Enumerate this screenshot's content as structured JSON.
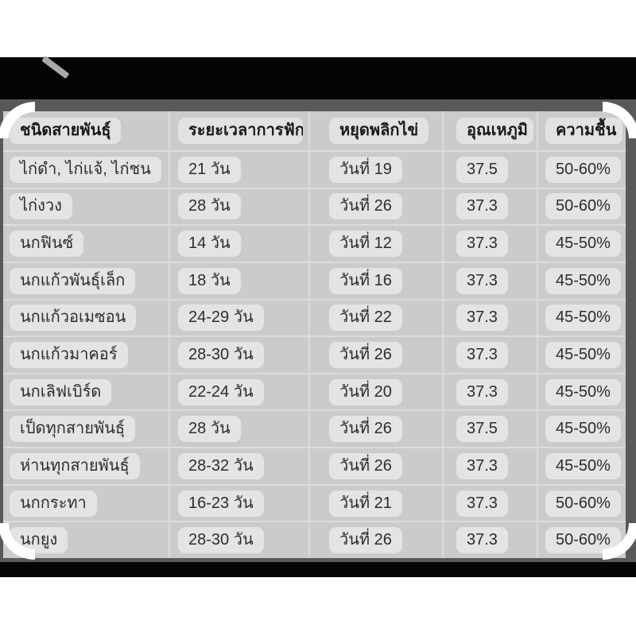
{
  "page": {
    "colors": {
      "background": "#ffffff",
      "band_black": "#050505",
      "frame_gray": "#59595b",
      "table_background": "#cbcbcb",
      "cell_pill": "#e4e4e4",
      "grid_line": "#dcdcdc",
      "body_text": "#2d2d2d",
      "header_text": "#1a1a1a"
    }
  },
  "table": {
    "columns": {
      "species": "ชนิดสายพันธุ์",
      "incubation": "ระยะเวลาการฟัก",
      "stop_turning": "หยุดพลิกไข่",
      "temperature": "อุณเหภูมิ",
      "humidity": "ความชื้น"
    },
    "rows": [
      {
        "species": "ไก่ดำ, ไก่แจ้, ไก่ชน",
        "incubation": "21 วัน",
        "stop_turning": "วันที่ 19",
        "temperature": "37.5",
        "humidity": "50-60%"
      },
      {
        "species": "ไก่งวง",
        "incubation": "28 วัน",
        "stop_turning": "วันที่ 26",
        "temperature": "37.3",
        "humidity": "50-60%"
      },
      {
        "species": "นกฟินซ์",
        "incubation": "14 วัน",
        "stop_turning": "วันที่ 12",
        "temperature": "37.3",
        "humidity": "45-50%"
      },
      {
        "species": "นกแก้วพันธุ์เล็ก",
        "incubation": "18 วัน",
        "stop_turning": "วันที่ 16",
        "temperature": "37.3",
        "humidity": "45-50%"
      },
      {
        "species": "นกแก้วอเมซอน",
        "incubation": "24-29 วัน",
        "stop_turning": "วันที่ 22",
        "temperature": "37.3",
        "humidity": "45-50%"
      },
      {
        "species": "นกแก้วมาคอร์",
        "incubation": "28-30 วัน",
        "stop_turning": "วันที่ 26",
        "temperature": "37.3",
        "humidity": "45-50%"
      },
      {
        "species": "นกเลิฟเบิร์ด",
        "incubation": "22-24 วัน",
        "stop_turning": "วันที่ 20",
        "temperature": "37.3",
        "humidity": "45-50%"
      },
      {
        "species": "เป็ดทุกสายพันธุ์",
        "incubation": "28 วัน",
        "stop_turning": "วันที่ 26",
        "temperature": "37.5",
        "humidity": "45-50%"
      },
      {
        "species": "ห่านทุกสายพันธุ์",
        "incubation": "28-32 วัน",
        "stop_turning": "วันที่ 26",
        "temperature": "37.3",
        "humidity": "45-50%"
      },
      {
        "species": "นกกระทา",
        "incubation": "16-23 วัน",
        "stop_turning": "วันที่ 21",
        "temperature": "37.3",
        "humidity": "50-60%"
      },
      {
        "species": "นกยูง",
        "incubation": "28-30 วัน",
        "stop_turning": "วันที่ 26",
        "temperature": "37.3",
        "humidity": "50-60%"
      }
    ]
  }
}
